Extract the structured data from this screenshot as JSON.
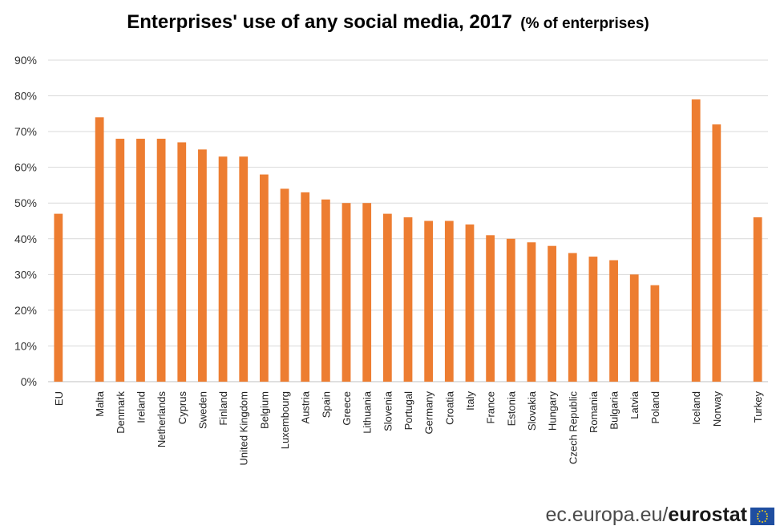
{
  "chart_data": {
    "type": "bar",
    "title": "Enterprises' use of any social media, 2017",
    "unit_label": "(% of enterprises)",
    "categories": [
      "EU",
      "Malta",
      "Denmark",
      "Ireland",
      "Netherlands",
      "Cyprus",
      "Sweden",
      "Finland",
      "United Kingdom",
      "Belgium",
      "Luxembourg",
      "Austria",
      "Spain",
      "Greece",
      "Lithuania",
      "Slovenia",
      "Portugal",
      "Germany",
      "Croatia",
      "Italy",
      "France",
      "Estonia",
      "Slovakia",
      "Hungary",
      "Czech Republic",
      "Romania",
      "Bulgaria",
      "Latvia",
      "Poland",
      "Iceland",
      "Norway",
      "Turkey"
    ],
    "values": [
      47,
      74,
      68,
      68,
      68,
      67,
      65,
      63,
      63,
      58,
      54,
      53,
      51,
      50,
      50,
      47,
      46,
      45,
      45,
      44,
      41,
      40,
      39,
      38,
      36,
      35,
      34,
      30,
      27,
      79,
      72,
      46
    ],
    "ylim": [
      0,
      90
    ],
    "yticks": [
      "0%",
      "10%",
      "20%",
      "30%",
      "40%",
      "50%",
      "60%",
      "70%",
      "80%",
      "90%"
    ],
    "grid": true,
    "bar_color": "#ed7d31",
    "legend": "none"
  },
  "footer": {
    "source_prefix": "ec.europa.eu/",
    "source_brand": "eurostat"
  }
}
